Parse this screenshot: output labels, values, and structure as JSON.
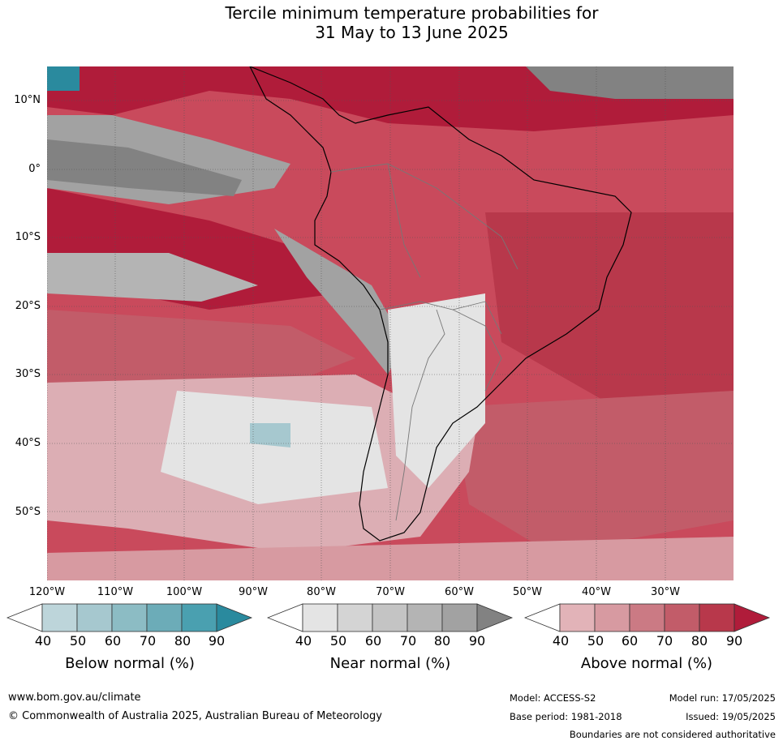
{
  "title_line1": "Tercile minimum temperature probabilities for",
  "title_line2": "31 May to 13 June 2025",
  "lat_labels": [
    "10°N",
    "0°",
    "10°S",
    "20°S",
    "30°S",
    "40°S",
    "50°S"
  ],
  "lon_labels": [
    "120°W",
    "110°W",
    "100°W",
    "90°W",
    "80°W",
    "70°W",
    "60°W",
    "50°W",
    "40°W",
    "30°W"
  ],
  "legend": {
    "below": {
      "title": "Below normal (%)",
      "ticks": [
        "40",
        "50",
        "60",
        "70",
        "80",
        "90"
      ],
      "colors": [
        "#ffffff",
        "#bdd5da",
        "#a6c8cf",
        "#8cbcc4",
        "#6cacb8",
        "#4aa0b0",
        "#2a8a9e"
      ]
    },
    "near": {
      "title": "Near normal (%)",
      "ticks": [
        "40",
        "50",
        "60",
        "70",
        "80",
        "90"
      ],
      "colors": [
        "#ffffff",
        "#e4e4e4",
        "#d4d4d4",
        "#c4c4c4",
        "#b4b4b4",
        "#a2a2a2",
        "#828282"
      ]
    },
    "above": {
      "title": "Above normal (%)",
      "ticks": [
        "40",
        "50",
        "60",
        "70",
        "80",
        "90"
      ],
      "colors": [
        "#ffffff",
        "#e2b3b8",
        "#d79aa1",
        "#cb7a84",
        "#c25c69",
        "#b8384b",
        "#b01c3a"
      ]
    }
  },
  "footer": {
    "website": "www.bom.gov.au/climate",
    "copyright": "© Commonwealth of Australia 2025, Australian Bureau of Meteorology",
    "model": "Model: ACCESS-S2",
    "model_run": "Model run: 17/05/2025",
    "base_period": "Base period: 1981-2018",
    "issued": "Issued: 19/05/2025",
    "disclaimer": "Boundaries are not considered authoritative"
  }
}
